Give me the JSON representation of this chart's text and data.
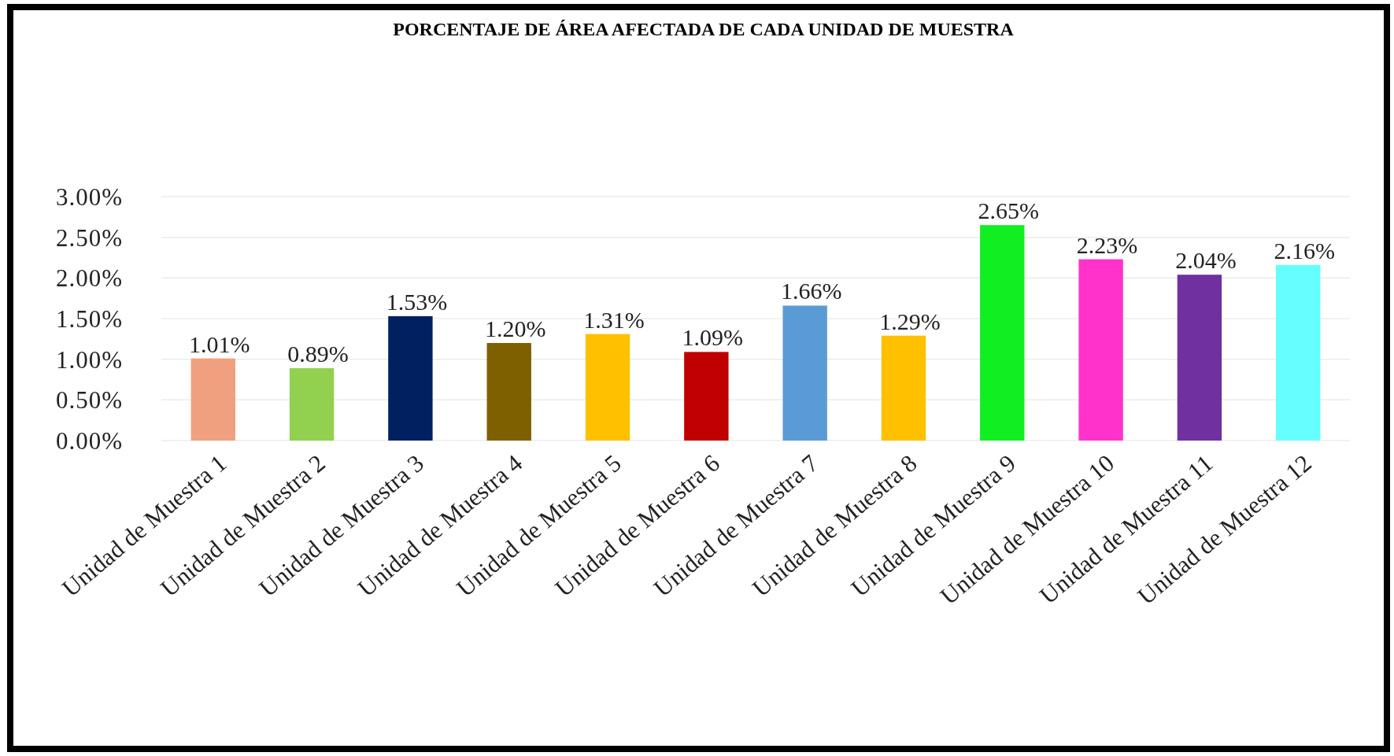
{
  "chart_data": {
    "type": "bar",
    "title": "PORCENTAJE DE ÁREA AFECTADA DE CADA UNIDAD DE MUESTRA",
    "categories": [
      "Unidad de Muestra 1",
      "Unidad de Muestra 2",
      "Unidad de Muestra 3",
      "Unidad de Muestra 4",
      "Unidad de Muestra 5",
      "Unidad de Muestra 6",
      "Unidad de Muestra 7",
      "Unidad de Muestra 8",
      "Unidad de Muestra 9",
      "Unidad de Muestra 10",
      "Unidad de Muestra 11",
      "Unidad de Muestra 12"
    ],
    "values": [
      1.01,
      0.89,
      1.53,
      1.2,
      1.31,
      1.09,
      1.66,
      1.29,
      2.65,
      2.23,
      2.04,
      2.16
    ],
    "value_labels": [
      "1.01%",
      "0.89%",
      "1.53%",
      "1.20%",
      "1.31%",
      "1.09%",
      "1.66%",
      "1.29%",
      "2.65%",
      "2.23%",
      "2.04%",
      "2.16%"
    ],
    "colors": [
      "#f0a07e",
      "#92d050",
      "#002060",
      "#7f6000",
      "#ffc000",
      "#c00000",
      "#5b9bd5",
      "#ffc000",
      "#11ee22",
      "#ff33cc",
      "#7030a0",
      "#66ffff"
    ],
    "ylim": [
      0,
      3
    ],
    "yticks": [
      {
        "value": 0,
        "label": "0.00%"
      },
      {
        "value": 0.5,
        "label": "0.50%"
      },
      {
        "value": 1,
        "label": "1.00%"
      },
      {
        "value": 1.5,
        "label": "1.50%"
      },
      {
        "value": 2,
        "label": "2.00%"
      },
      {
        "value": 2.5,
        "label": "2.50%"
      },
      {
        "value": 3,
        "label": "3.00%"
      }
    ],
    "grid": "y"
  }
}
